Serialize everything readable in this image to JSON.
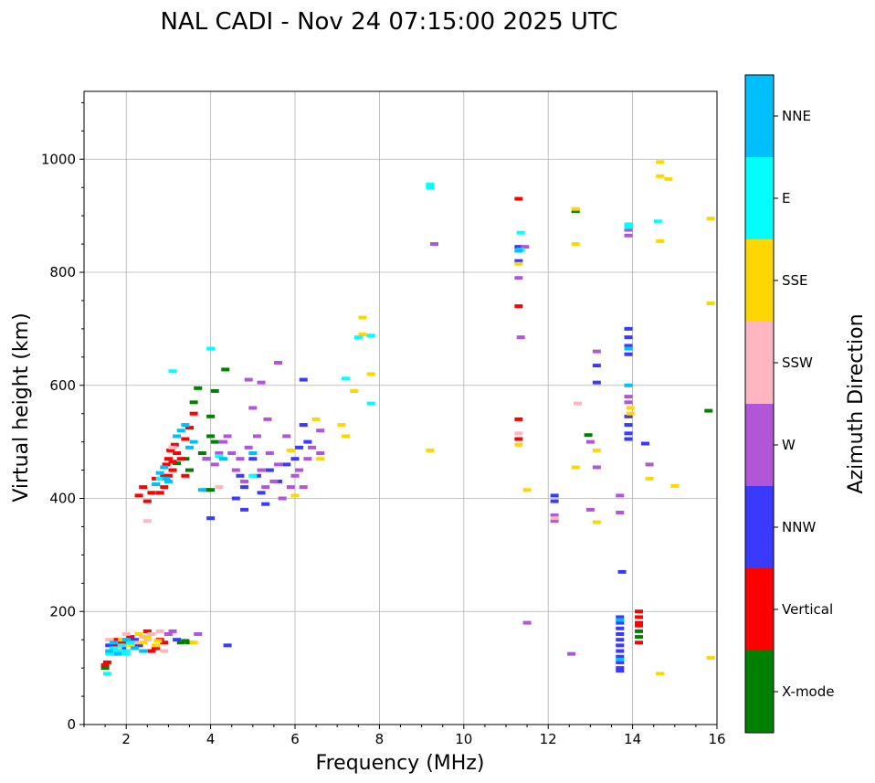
{
  "chart_data": {
    "type": "scatter",
    "title": "NAL CADI - Nov 24 07:15:00 2025 UTC",
    "xlabel": "Frequency (MHz)",
    "ylabel": "Virtual height (km)",
    "xlim": [
      1,
      16
    ],
    "ylim": [
      0,
      1120
    ],
    "xticks": [
      2,
      4,
      6,
      8,
      10,
      12,
      14,
      16
    ],
    "yticks": [
      0,
      200,
      400,
      600,
      800,
      1000
    ],
    "grid": true,
    "colorbar": {
      "title": "Azimuth Direction",
      "categories": [
        {
          "label": "X-mode",
          "color": "#008000"
        },
        {
          "label": "Vertical",
          "color": "#ff0000"
        },
        {
          "label": "NNW",
          "color": "#3a3aff"
        },
        {
          "label": "W",
          "color": "#b255d8"
        },
        {
          "label": "SSW",
          "color": "#ffb6c1"
        },
        {
          "label": "SSE",
          "color": "#ffd700"
        },
        {
          "label": "E",
          "color": "#00ffff"
        },
        {
          "label": "NNE",
          "color": "#00bfff"
        }
      ]
    },
    "series": [
      {
        "name": "X-mode",
        "points": [
          [
            1.5,
            100
          ],
          [
            3.6,
            570
          ],
          [
            3.7,
            595
          ],
          [
            3.8,
            480
          ],
          [
            3.9,
            470
          ],
          [
            4.0,
            545
          ],
          [
            4.0,
            510
          ],
          [
            4.1,
            590
          ],
          [
            4.1,
            500
          ],
          [
            3.9,
            415
          ],
          [
            4.0,
            415
          ],
          [
            3.5,
            450
          ],
          [
            3.4,
            470
          ],
          [
            3.2,
            462
          ],
          [
            3.3,
            145
          ],
          [
            3.4,
            148
          ],
          [
            3.5,
            145
          ],
          [
            4.35,
            628
          ],
          [
            12.65,
            908
          ],
          [
            12.95,
            512
          ],
          [
            14.15,
            165
          ],
          [
            14.15,
            155
          ],
          [
            15.8,
            555
          ]
        ]
      },
      {
        "name": "Vertical",
        "points": [
          [
            1.5,
            105
          ],
          [
            1.55,
            110
          ],
          [
            1.7,
            140
          ],
          [
            1.8,
            150
          ],
          [
            1.9,
            145
          ],
          [
            2.1,
            155
          ],
          [
            2.3,
            405
          ],
          [
            2.4,
            420
          ],
          [
            2.5,
            395
          ],
          [
            2.6,
            410
          ],
          [
            2.7,
            435
          ],
          [
            2.8,
            410
          ],
          [
            2.9,
            420
          ],
          [
            2.95,
            460
          ],
          [
            3.0,
            470
          ],
          [
            3.05,
            485
          ],
          [
            3.1,
            465
          ],
          [
            3.1,
            450
          ],
          [
            3.15,
            495
          ],
          [
            3.2,
            480
          ],
          [
            3.3,
            470
          ],
          [
            3.4,
            505
          ],
          [
            3.5,
            525
          ],
          [
            3.6,
            550
          ],
          [
            3.0,
            440
          ],
          [
            2.9,
            440
          ],
          [
            3.4,
            440
          ],
          [
            2.6,
            130
          ],
          [
            2.7,
            135
          ],
          [
            2.8,
            150
          ],
          [
            2.9,
            145
          ],
          [
            2.5,
            165
          ],
          [
            11.3,
            930
          ],
          [
            11.3,
            740
          ],
          [
            11.3,
            540
          ],
          [
            11.3,
            505
          ],
          [
            14.15,
            200
          ],
          [
            14.15,
            190
          ],
          [
            14.15,
            180
          ],
          [
            14.15,
            175
          ],
          [
            14.15,
            145
          ]
        ]
      },
      {
        "name": "NNW",
        "points": [
          [
            1.6,
            140
          ],
          [
            1.9,
            135
          ],
          [
            2.2,
            150
          ],
          [
            2.3,
            140
          ],
          [
            3.2,
            150
          ],
          [
            4.0,
            365
          ],
          [
            4.4,
            140
          ],
          [
            4.6,
            400
          ],
          [
            4.7,
            440
          ],
          [
            4.8,
            420
          ],
          [
            4.8,
            380
          ],
          [
            5.0,
            470
          ],
          [
            5.1,
            440
          ],
          [
            5.2,
            410
          ],
          [
            5.3,
            390
          ],
          [
            5.4,
            450
          ],
          [
            5.6,
            430
          ],
          [
            5.8,
            460
          ],
          [
            6.0,
            470
          ],
          [
            6.1,
            490
          ],
          [
            6.2,
            610
          ],
          [
            6.2,
            530
          ],
          [
            6.3,
            500
          ],
          [
            11.3,
            820
          ],
          [
            11.3,
            845
          ],
          [
            12.15,
            405
          ],
          [
            12.15,
            395
          ],
          [
            13.15,
            635
          ],
          [
            13.15,
            605
          ],
          [
            13.75,
            270
          ],
          [
            13.7,
            190
          ],
          [
            13.7,
            180
          ],
          [
            13.7,
            170
          ],
          [
            13.7,
            160
          ],
          [
            13.7,
            150
          ],
          [
            13.7,
            140
          ],
          [
            13.7,
            130
          ],
          [
            13.7,
            120
          ],
          [
            13.7,
            110
          ],
          [
            13.7,
            100
          ],
          [
            13.7,
            95
          ],
          [
            13.9,
            700
          ],
          [
            13.9,
            685
          ],
          [
            13.9,
            670
          ],
          [
            13.9,
            655
          ],
          [
            13.9,
            530
          ],
          [
            13.9,
            515
          ],
          [
            13.9,
            505
          ],
          [
            13.9,
            545
          ],
          [
            14.3,
            497
          ]
        ]
      },
      {
        "name": "W",
        "points": [
          [
            3.9,
            470
          ],
          [
            4.1,
            460
          ],
          [
            4.2,
            480
          ],
          [
            4.3,
            500
          ],
          [
            4.4,
            510
          ],
          [
            4.5,
            480
          ],
          [
            4.6,
            450
          ],
          [
            4.7,
            470
          ],
          [
            4.8,
            430
          ],
          [
            4.9,
            490
          ],
          [
            5.0,
            560
          ],
          [
            5.1,
            510
          ],
          [
            5.2,
            450
          ],
          [
            5.3,
            420
          ],
          [
            5.35,
            540
          ],
          [
            5.4,
            480
          ],
          [
            5.5,
            430
          ],
          [
            5.6,
            460
          ],
          [
            5.7,
            400
          ],
          [
            5.8,
            510
          ],
          [
            5.9,
            420
          ],
          [
            6.0,
            440
          ],
          [
            6.1,
            450
          ],
          [
            6.2,
            420
          ],
          [
            6.3,
            470
          ],
          [
            6.4,
            490
          ],
          [
            6.6,
            520
          ],
          [
            6.6,
            480
          ],
          [
            4.9,
            610
          ],
          [
            5.2,
            605
          ],
          [
            5.6,
            640
          ],
          [
            3.0,
            160
          ],
          [
            3.1,
            165
          ],
          [
            3.7,
            160
          ],
          [
            11.3,
            790
          ],
          [
            11.35,
            685
          ],
          [
            11.45,
            845
          ],
          [
            11.5,
            180
          ],
          [
            12.15,
            360
          ],
          [
            12.15,
            370
          ],
          [
            12.55,
            125
          ],
          [
            13.0,
            500
          ],
          [
            13.0,
            380
          ],
          [
            13.15,
            660
          ],
          [
            13.15,
            455
          ],
          [
            13.7,
            405
          ],
          [
            13.7,
            375
          ],
          [
            13.9,
            580
          ],
          [
            13.9,
            570
          ],
          [
            13.9,
            875
          ],
          [
            13.9,
            865
          ],
          [
            14.4,
            460
          ],
          [
            9.3,
            850
          ]
        ]
      },
      {
        "name": "SSW",
        "points": [
          [
            1.6,
            150
          ],
          [
            1.8,
            135
          ],
          [
            2.0,
            160
          ],
          [
            2.2,
            145
          ],
          [
            2.4,
            155
          ],
          [
            2.5,
            150
          ],
          [
            2.6,
            160
          ],
          [
            2.8,
            165
          ],
          [
            2.9,
            130
          ],
          [
            2.5,
            360
          ],
          [
            3.1,
            490
          ],
          [
            11.3,
            515
          ],
          [
            12.15,
            365
          ],
          [
            12.7,
            568
          ],
          [
            4.2,
            420
          ]
        ]
      },
      {
        "name": "SSE",
        "points": [
          [
            1.9,
            150
          ],
          [
            2.1,
            140
          ],
          [
            2.3,
            160
          ],
          [
            2.4,
            145
          ],
          [
            2.5,
            155
          ],
          [
            2.7,
            140
          ],
          [
            2.75,
            148
          ],
          [
            3.6,
            145
          ],
          [
            5.9,
            485
          ],
          [
            6.0,
            405
          ],
          [
            6.5,
            540
          ],
          [
            6.6,
            470
          ],
          [
            7.1,
            530
          ],
          [
            7.2,
            510
          ],
          [
            7.4,
            590
          ],
          [
            7.6,
            720
          ],
          [
            7.6,
            690
          ],
          [
            7.8,
            620
          ],
          [
            9.2,
            485
          ],
          [
            11.3,
            815
          ],
          [
            11.3,
            495
          ],
          [
            11.5,
            415
          ],
          [
            12.65,
            912
          ],
          [
            12.65,
            850
          ],
          [
            12.65,
            455
          ],
          [
            13.15,
            485
          ],
          [
            13.15,
            358
          ],
          [
            13.95,
            560
          ],
          [
            13.95,
            550
          ],
          [
            14.4,
            435
          ],
          [
            14.65,
            995
          ],
          [
            14.65,
            970
          ],
          [
            14.65,
            855
          ],
          [
            14.65,
            90
          ],
          [
            14.85,
            965
          ],
          [
            15.0,
            422
          ],
          [
            15.85,
            895
          ],
          [
            15.85,
            745
          ],
          [
            15.85,
            118
          ]
        ]
      },
      {
        "name": "E",
        "points": [
          [
            1.6,
            125
          ],
          [
            1.7,
            135
          ],
          [
            1.8,
            130
          ],
          [
            1.9,
            140
          ],
          [
            2.0,
            130
          ],
          [
            2.1,
            145
          ],
          [
            2.0,
            125
          ],
          [
            1.55,
            90
          ],
          [
            2.8,
            435
          ],
          [
            3.1,
            625
          ],
          [
            4.0,
            665
          ],
          [
            4.2,
            475
          ],
          [
            5.0,
            440
          ],
          [
            7.2,
            612
          ],
          [
            7.5,
            685
          ],
          [
            7.8,
            568
          ],
          [
            7.8,
            688
          ],
          [
            9.2,
            950
          ],
          [
            9.2,
            955
          ],
          [
            11.35,
            840
          ],
          [
            11.35,
            870
          ],
          [
            13.9,
            885
          ],
          [
            13.9,
            880
          ],
          [
            14.6,
            890
          ]
        ]
      },
      {
        "name": "NNE",
        "points": [
          [
            1.6,
            130
          ],
          [
            1.7,
            145
          ],
          [
            1.8,
            125
          ],
          [
            2.0,
            150
          ],
          [
            2.2,
            135
          ],
          [
            2.4,
            130
          ],
          [
            2.7,
            425
          ],
          [
            2.8,
            445
          ],
          [
            2.9,
            455
          ],
          [
            2.95,
            435
          ],
          [
            3.0,
            430
          ],
          [
            3.2,
            510
          ],
          [
            3.3,
            520
          ],
          [
            3.4,
            530
          ],
          [
            3.5,
            490
          ],
          [
            3.6,
            500
          ],
          [
            3.8,
            415
          ],
          [
            4.3,
            470
          ],
          [
            5.0,
            480
          ],
          [
            11.3,
            838
          ],
          [
            13.7,
            185
          ],
          [
            13.7,
            115
          ],
          [
            13.9,
            665
          ],
          [
            13.9,
            600
          ]
        ]
      }
    ]
  }
}
